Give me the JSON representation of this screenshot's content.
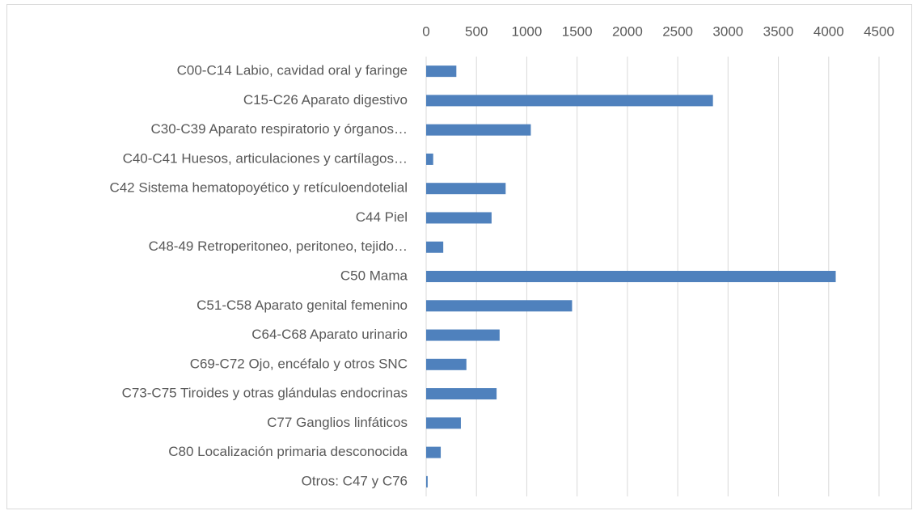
{
  "chart_data": {
    "type": "hbar",
    "categories": [
      "C00-C14 Labio, cavidad oral y faringe",
      "C15-C26 Aparato digestivo",
      "C30-C39 Aparato respiratorio y órganos…",
      "C40-C41 Huesos, articulaciones y cartílagos…",
      "C42 Sistema hematopoyético y retículoendotelial",
      "C44 Piel",
      "C48-49 Retroperitoneo, peritoneo, tejido…",
      "C50 Mama",
      "C51-C58 Aparato genital femenino",
      "C64-C68 Aparato urinario",
      "C69-C72 Ojo, encéfalo y otros SNC",
      "C73-C75 Tiroides y otras glándulas endocrinas",
      "C77 Ganglios linfáticos",
      "C80 Localización primaria desconocida",
      "Otros: C47 y C76"
    ],
    "values": [
      300,
      2850,
      1040,
      70,
      790,
      650,
      170,
      4070,
      1450,
      730,
      400,
      700,
      345,
      145,
      15
    ],
    "color": "#4f81bd",
    "xlim": [
      0,
      4500
    ],
    "xticks": [
      0,
      500,
      1000,
      1500,
      2000,
      2500,
      3000,
      3500,
      4000,
      4500
    ],
    "grid": true,
    "x_axis_position": "top"
  }
}
